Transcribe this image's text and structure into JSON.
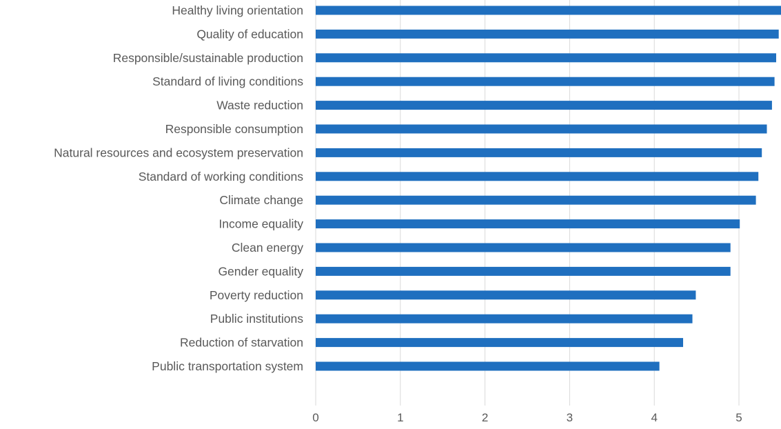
{
  "chart_data": {
    "type": "bar",
    "orientation": "horizontal",
    "title": "",
    "xlabel": "",
    "ylabel": "",
    "xlim": [
      0,
      5.5
    ],
    "xticks": [
      0,
      1,
      2,
      3,
      4,
      5
    ],
    "grid": "vertical",
    "bar_color": "#1f6fbf",
    "categories": [
      "Healthy living orientation",
      "Quality of education",
      "Responsible/sustainable production",
      "Standard of living conditions",
      "Waste reduction",
      "Responsible consumption",
      "Natural resources and ecosystem preservation",
      "Standard of working conditions",
      "Climate change",
      "Income equality",
      "Clean energy",
      "Gender equality",
      "Poverty reduction",
      "Public institutions",
      "Reduction of starvation",
      "Public transportation system"
    ],
    "values": [
      5.5,
      5.47,
      5.44,
      5.42,
      5.39,
      5.33,
      5.27,
      5.23,
      5.2,
      5.01,
      4.9,
      4.9,
      4.49,
      4.45,
      4.34,
      4.06
    ]
  }
}
